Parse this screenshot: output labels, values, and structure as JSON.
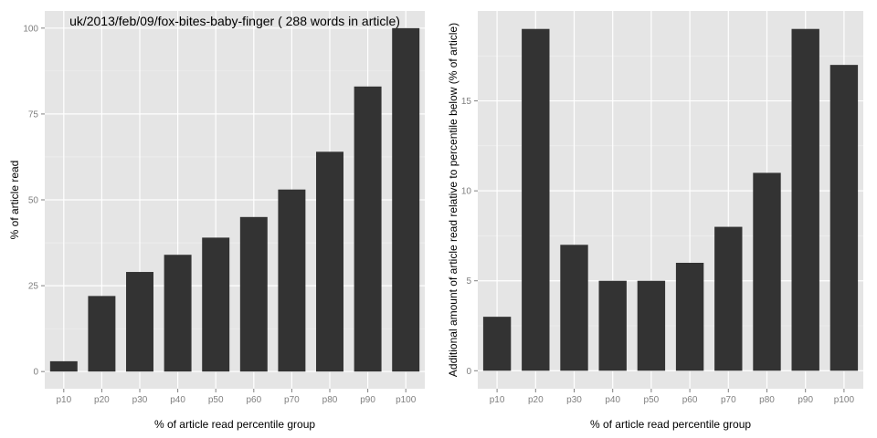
{
  "chart_data": [
    {
      "type": "bar",
      "title": "uk/2013/feb/09/fox-bites-baby-finger ( 288 words in article)",
      "xlabel": "% of article read percentile group",
      "ylabel": "% of article read",
      "categories": [
        "p10",
        "p20",
        "p30",
        "p40",
        "p50",
        "p60",
        "p70",
        "p80",
        "p90",
        "p100"
      ],
      "values": [
        3,
        22,
        29,
        34,
        39,
        45,
        53,
        64,
        83,
        100
      ],
      "ylim": [
        -5,
        105
      ],
      "yticks": [
        0,
        25,
        50,
        75,
        100
      ],
      "grid": true,
      "bar_color": "#333333",
      "panel_color": "#e5e5e5"
    },
    {
      "type": "bar",
      "title": "",
      "xlabel": "% of article read percentile group",
      "ylabel": "Additional amount of article read relative to percentile below (% of article)",
      "categories": [
        "p10",
        "p20",
        "p30",
        "p40",
        "p50",
        "p60",
        "p70",
        "p80",
        "p90",
        "p100"
      ],
      "values": [
        3,
        19,
        7,
        5,
        5,
        6,
        8,
        11,
        19,
        17
      ],
      "ylim": [
        -1,
        20
      ],
      "yticks": [
        0,
        5,
        10,
        15
      ],
      "grid": true,
      "bar_color": "#333333",
      "panel_color": "#e5e5e5"
    }
  ]
}
